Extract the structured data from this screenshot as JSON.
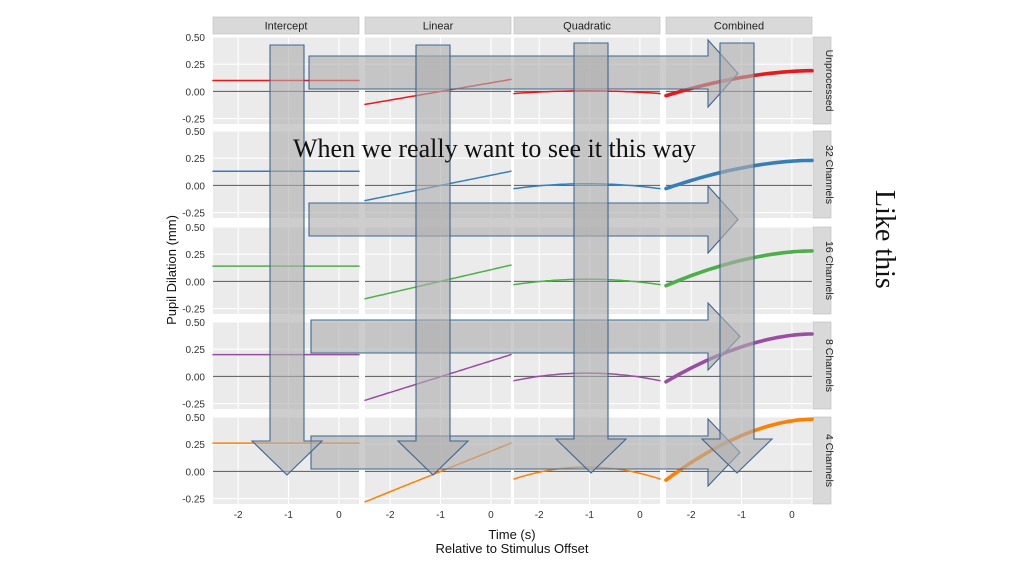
{
  "slide": {
    "overlay_caption": "When we really want to see it this way",
    "side_caption": "Like this"
  },
  "chart_data": {
    "type": "line",
    "facet_columns": [
      "Intercept",
      "Linear",
      "Quadratic",
      "Combined"
    ],
    "facet_rows": [
      "Unprocessed",
      "32 Channels",
      "16 Channels",
      "8 Channels",
      "4 Channels"
    ],
    "ylabel": "Pupil Dilation (mm)",
    "xlabel": "Time (s)",
    "xlabel_sub": "Relative to Stimulus Offset",
    "xlim": [
      -2.5,
      0.4
    ],
    "ylim": [
      -0.3,
      0.5
    ],
    "x_ticks": [
      -2,
      -1,
      0
    ],
    "y_ticks": [
      -0.25,
      0,
      0.25,
      0.5
    ],
    "y_tick_labels": [
      "-0.25",
      "0.00",
      "0.25",
      "0.50"
    ],
    "grid": true,
    "background": "#ebebeb",
    "row_colors": [
      "#e41a1c",
      "#377eb8",
      "#4daf4a",
      "#984ea3",
      "#ff7f00"
    ],
    "x_range": [
      -2.5,
      0.4
    ],
    "intercept": [
      0.1,
      0.13,
      0.14,
      0.2,
      0.26
    ],
    "linear_start": [
      -0.12,
      -0.14,
      -0.16,
      -0.22,
      -0.28
    ],
    "linear_end": [
      0.11,
      0.13,
      0.15,
      0.2,
      0.26
    ],
    "quadratic_peak": [
      0.005,
      0.015,
      0.02,
      0.03,
      0.04
    ],
    "quadratic_edge": [
      -0.02,
      -0.03,
      -0.03,
      -0.04,
      -0.07
    ],
    "combined_start": [
      -0.04,
      -0.03,
      -0.04,
      -0.05,
      -0.08
    ],
    "combined_end": [
      0.19,
      0.23,
      0.28,
      0.39,
      0.48
    ]
  }
}
